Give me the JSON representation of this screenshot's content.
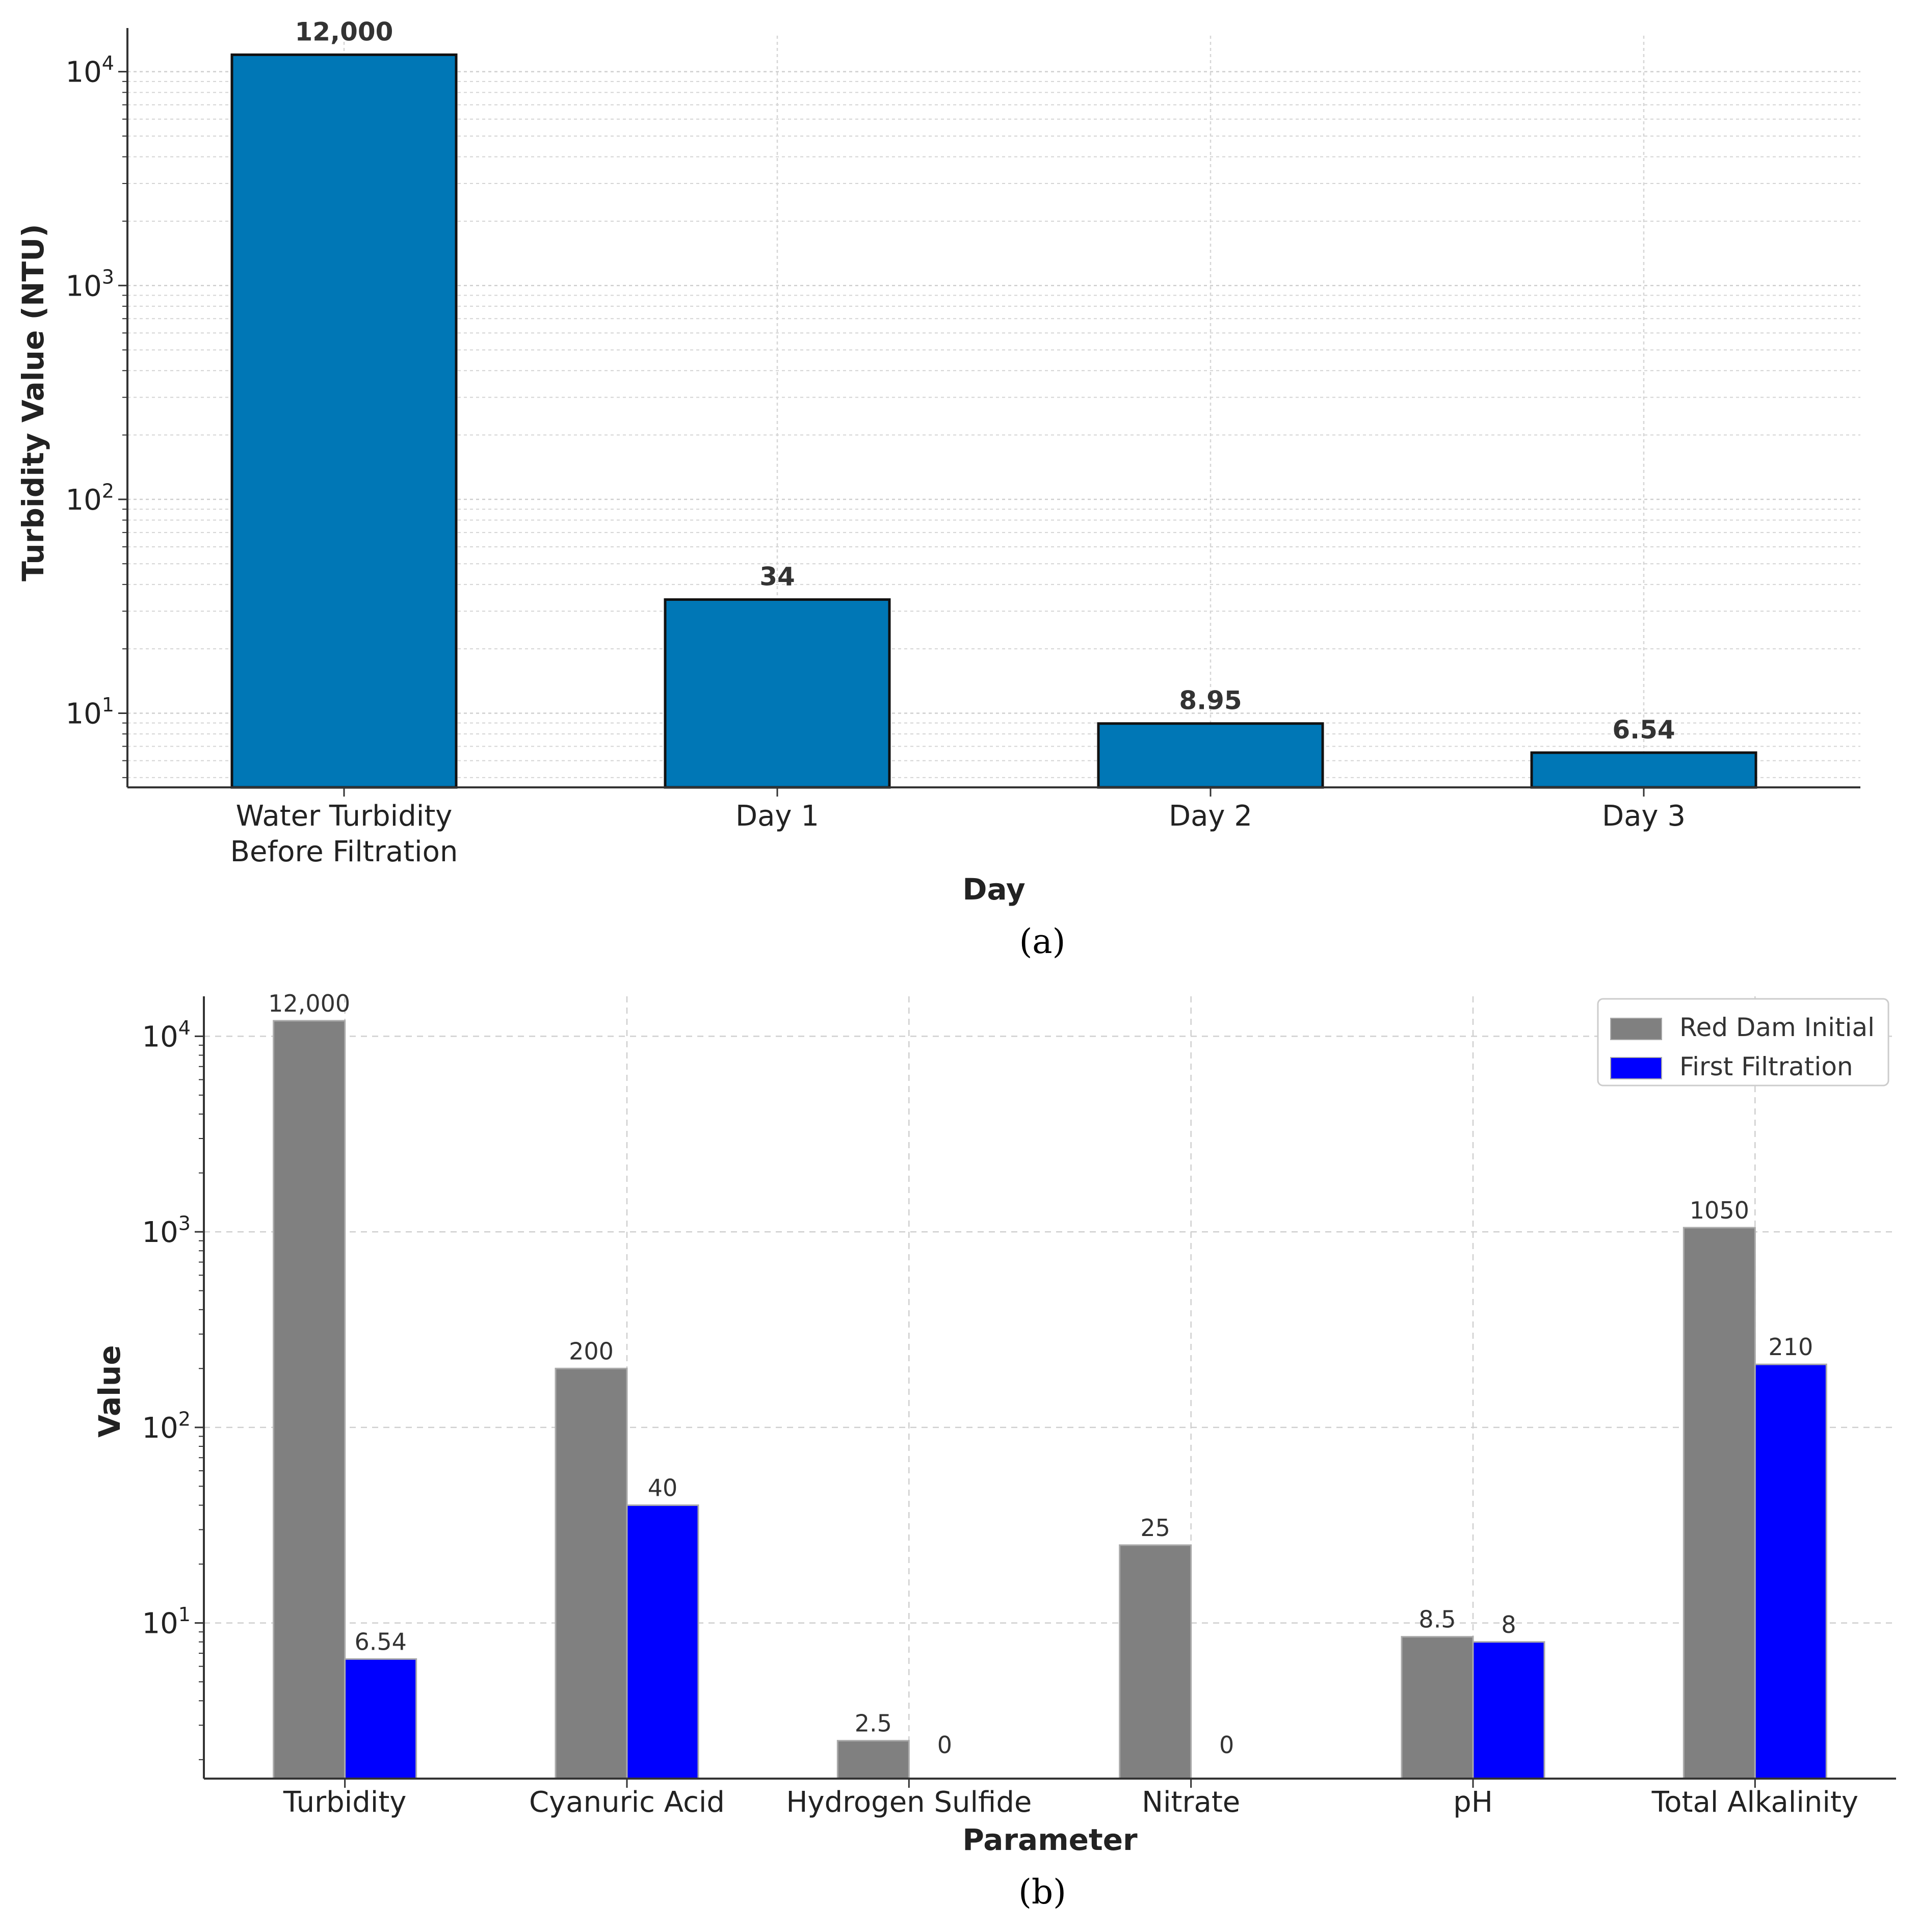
{
  "chart_data": [
    {
      "type": "bar",
      "panel_label": "(a)",
      "xlabel": "Day",
      "ylabel": "Turbidity Value (NTU)",
      "y_scale": "log",
      "y_tick_labels": [
        "10^1",
        "10^2",
        "10^3",
        "10^4"
      ],
      "grid": true,
      "categories": [
        "Water Turbidity Before Filtration",
        "Day 1",
        "Day 2",
        "Day 3"
      ],
      "category_lines": [
        [
          "Water Turbidity",
          "Before Filtration"
        ],
        [
          "Day 1"
        ],
        [
          "Day 2"
        ],
        [
          "Day 3"
        ]
      ],
      "values": [
        12000,
        34,
        8.95,
        6.54
      ],
      "value_labels": [
        "12,000",
        "34",
        "8.95",
        "6.54"
      ],
      "ylim": [
        4.5,
        16000
      ],
      "color": "#0077b6"
    },
    {
      "type": "bar",
      "panel_label": "(b)",
      "xlabel": "Parameter",
      "ylabel": "Value",
      "y_scale": "log",
      "y_tick_labels": [
        "10^1",
        "10^2",
        "10^3",
        "10^4"
      ],
      "grid": true,
      "legend_position": "top-right",
      "categories": [
        "Turbidity",
        "Cyanuric Acid",
        "Hydrogen Sulfide",
        "Nitrate",
        "pH",
        "Total Alkalinity"
      ],
      "series": [
        {
          "name": "Red Dam Initial",
          "color": "#808080",
          "values": [
            12000,
            200,
            2.5,
            25,
            8.5,
            1050
          ],
          "value_labels": [
            "12,000",
            "200",
            "2.5",
            "25",
            "8.5",
            "1050"
          ]
        },
        {
          "name": "First Filtration",
          "color": "#0000ff",
          "values": [
            6.54,
            40,
            0,
            0,
            8,
            210
          ],
          "value_labels": [
            "6.54",
            "40",
            "0",
            "0",
            "8",
            "210"
          ]
        }
      ],
      "ylim": [
        1.6,
        16000
      ]
    }
  ]
}
